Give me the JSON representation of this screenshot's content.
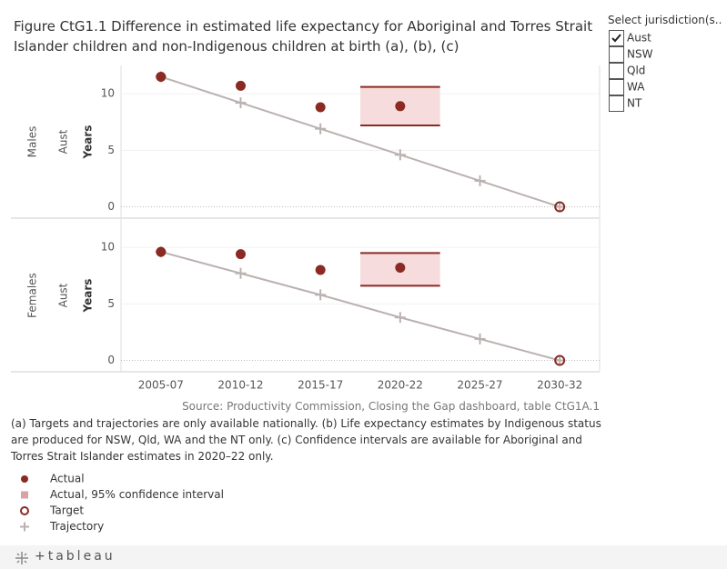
{
  "title": "Figure CtG1.1 Difference in estimated life expectancy for Aboriginal and Torres Strait Islander children and non-Indigenous children at birth (a), (b), (c)",
  "chart_data": {
    "type": "line",
    "categories": [
      "2005-07",
      "2010-12",
      "2015-17",
      "2020-22",
      "2025-27",
      "2030-32"
    ],
    "series": [
      {
        "name": "Actual",
        "color": "#8b2a23"
      },
      {
        "name": "Actual, 95% confidence interval",
        "color": "#f6dcdc"
      },
      {
        "name": "Target",
        "color": "#8b2a23"
      },
      {
        "name": "Trajectory",
        "color": "#bab2b0"
      }
    ],
    "grid": true,
    "panels": [
      {
        "row": "Males",
        "region": "Aust",
        "ylabel": "Years",
        "ylim": [
          -1,
          12.5
        ],
        "yticks": [
          0,
          5,
          10
        ],
        "series": [
          {
            "values": [
              11.5,
              10.7,
              8.8,
              8.9,
              null,
              null
            ]
          },
          {
            "low": [
              null,
              null,
              null,
              7.2,
              null,
              null
            ],
            "high": [
              null,
              null,
              null,
              10.6,
              null,
              null
            ]
          },
          {
            "values": [
              null,
              null,
              null,
              null,
              null,
              0
            ]
          },
          {
            "values": [
              11.5,
              9.2,
              6.9,
              4.6,
              2.3,
              0
            ]
          }
        ]
      },
      {
        "row": "Females",
        "region": "Aust",
        "ylabel": "Years",
        "ylim": [
          -1,
          12.5
        ],
        "yticks": [
          0,
          5,
          10
        ],
        "series": [
          {
            "values": [
              9.6,
              9.4,
              8.0,
              8.2,
              null,
              null
            ]
          },
          {
            "low": [
              null,
              null,
              null,
              6.6,
              null,
              null
            ],
            "high": [
              null,
              null,
              null,
              9.5,
              null,
              null
            ]
          },
          {
            "values": [
              null,
              null,
              null,
              null,
              null,
              0
            ]
          },
          {
            "values": [
              9.6,
              7.7,
              5.8,
              3.8,
              1.9,
              0
            ]
          }
        ]
      }
    ]
  },
  "source": "Source: Productivity Commission, Closing the Gap dashboard, table CtG1A.1",
  "notes": "(a) Targets and trajectories are only available nationally. (b) Life expectancy estimates by Indigenous status are produced for NSW, Qld, WA and the NT only. (c) Confidence intervals are available for Aboriginal and Torres Strait Islander estimates in 2020–22 only.",
  "filter": {
    "title": "Select jurisdiction(s..",
    "options": [
      "Aust",
      "NSW",
      "Qld",
      "WA",
      "NT"
    ],
    "checked": [
      true,
      false,
      false,
      false,
      false
    ]
  },
  "logo": "+tableau"
}
